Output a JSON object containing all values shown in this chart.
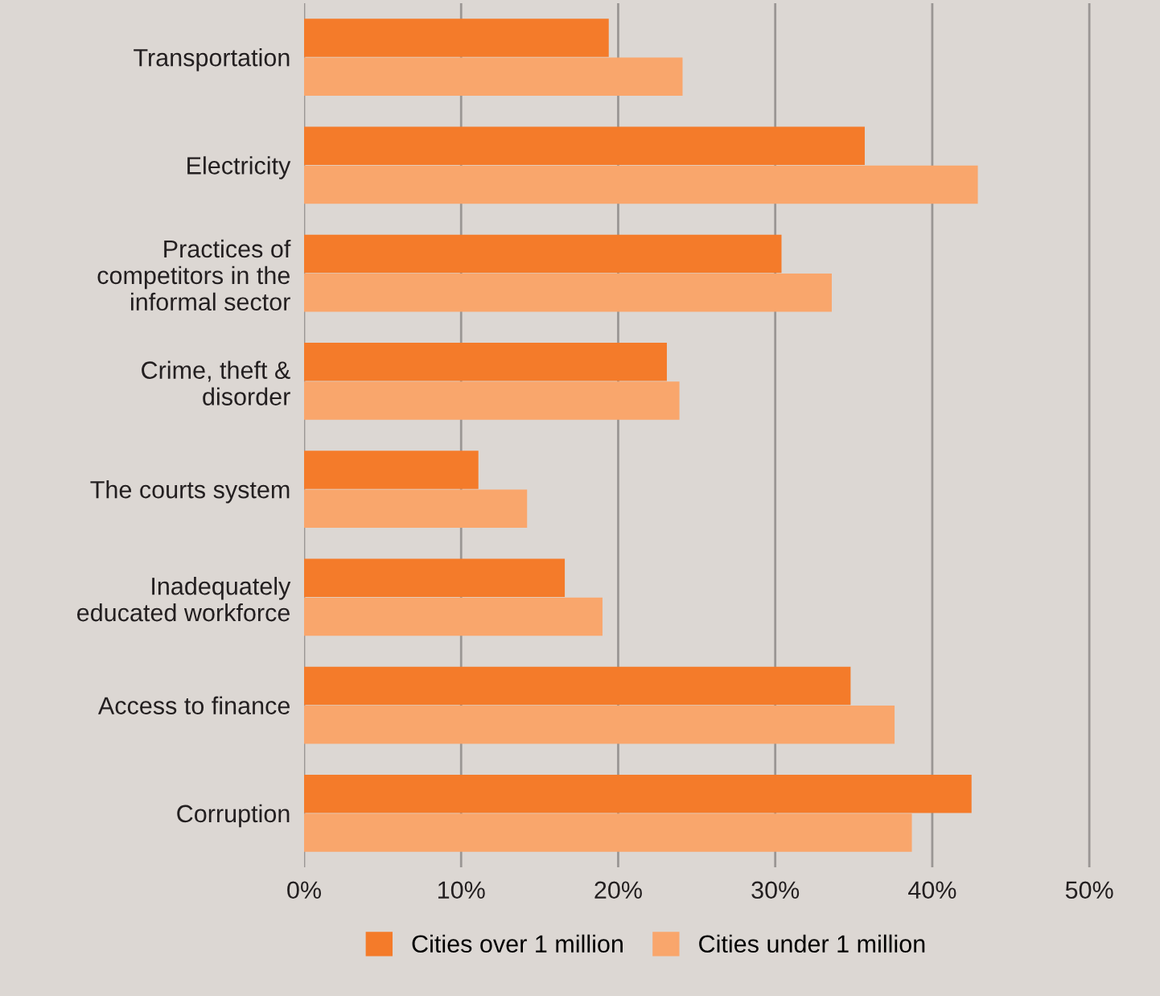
{
  "chart_data": {
    "type": "bar",
    "orientation": "horizontal",
    "categories": [
      "Transportation",
      "Electricity",
      "Practices of\ncompetitors in the\ninformal sector",
      "Crime, theft &\ndisorder",
      "The courts system",
      "Inadequately\neducated workforce",
      "Access to finance",
      "Corruption"
    ],
    "series": [
      {
        "name": "Cities over 1 million",
        "color": "#f47b2a",
        "values": [
          19.4,
          35.7,
          30.4,
          23.1,
          11.1,
          16.6,
          34.8,
          42.5
        ]
      },
      {
        "name": "Cities under 1 million",
        "color": "#f9a66c",
        "values": [
          24.1,
          42.9,
          33.6,
          23.9,
          14.2,
          19.0,
          37.6,
          38.7
        ]
      }
    ],
    "xlim": [
      0,
      54.5
    ],
    "xticks": [
      {
        "value": 0,
        "label": "0%"
      },
      {
        "value": 10,
        "label": "10%"
      },
      {
        "value": 20,
        "label": "20%"
      },
      {
        "value": 30,
        "label": "30%"
      },
      {
        "value": 40,
        "label": "40%"
      },
      {
        "value": 50,
        "label": "50%"
      }
    ],
    "grid": "x",
    "legend": "bottom"
  }
}
